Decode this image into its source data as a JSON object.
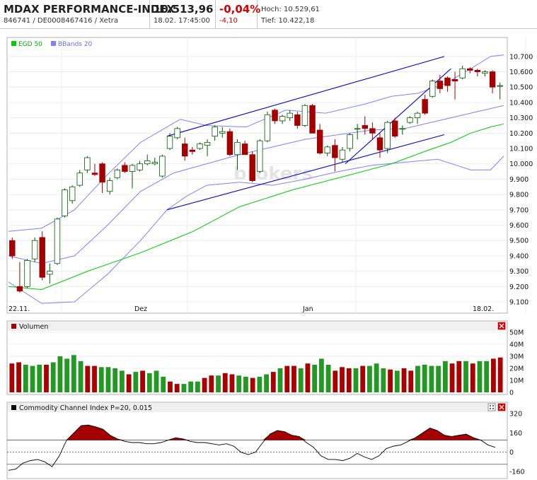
{
  "header": {
    "title": "MDAX PERFORMANCE-INDEX",
    "subtitle": "846741 / DE0008467416 / Xetra",
    "price": "10.513,96",
    "datetime": "18.02. 17:45:00",
    "change_pct": "-0,04%",
    "change_abs": "-4,10",
    "high": "Hoch: 10.529,61",
    "low": "Tief: 10.422,18"
  },
  "colors": {
    "up_fill": "#ffffff",
    "down_fill": "#a40000",
    "candle_outline": "#005a00",
    "egd": "#00cc00",
    "bbands": "#8080ff",
    "trend": "#0000cc",
    "vol_up": "#229922",
    "vol_down": "#aa0000",
    "cci_fill": "#a40000"
  },
  "icons": {
    "close": "close-x-icon",
    "layout": "layout-icon"
  },
  "chart_data": [
    {
      "type": "candlestick",
      "legend": [
        "EGD 50",
        "BBands 20"
      ],
      "x_labels": [
        "22.11.",
        "Dez",
        "Jan",
        "18.02."
      ],
      "y_ticks": [
        "10.700",
        "10.600",
        "10.500",
        "10.400",
        "10.300",
        "10.200",
        "10.100",
        "10.000",
        "9.900",
        "9.800",
        "9.700",
        "9.600",
        "9.500",
        "9.400",
        "9.300",
        "9.200",
        "9.100"
      ],
      "ylim": [
        9100,
        10750
      ],
      "watermark": "brokers",
      "ohlc": [
        [
          9500,
          9520,
          9380,
          9400
        ],
        [
          9200,
          9360,
          9160,
          9170
        ],
        [
          9200,
          9380,
          9190,
          9370
        ],
        [
          9380,
          9520,
          9360,
          9500
        ],
        [
          9520,
          9560,
          9240,
          9260
        ],
        [
          9280,
          9350,
          9220,
          9300
        ],
        [
          9350,
          9650,
          9340,
          9640
        ],
        [
          9660,
          9840,
          9650,
          9830
        ],
        [
          9760,
          9860,
          9740,
          9850
        ],
        [
          9860,
          9960,
          9850,
          9940
        ],
        [
          9960,
          10050,
          9940,
          10040
        ],
        [
          9940,
          10000,
          9920,
          9930
        ],
        [
          10000,
          10010,
          9810,
          9880
        ],
        [
          9820,
          9910,
          9800,
          9890
        ],
        [
          9910,
          9970,
          9900,
          9960
        ],
        [
          9990,
          10010,
          9940,
          9950
        ],
        [
          9950,
          10000,
          9840,
          9990
        ],
        [
          9960,
          10020,
          9950,
          10000
        ],
        [
          10000,
          10060,
          9990,
          10020
        ],
        [
          10000,
          10040,
          9990,
          10010
        ],
        [
          9920,
          10060,
          9910,
          10050
        ],
        [
          10100,
          10200,
          10090,
          10180
        ],
        [
          10170,
          10240,
          10160,
          10230
        ],
        [
          10130,
          10170,
          10020,
          10050
        ],
        [
          10090,
          10110,
          10060,
          10080
        ],
        [
          10100,
          10140,
          10090,
          10130
        ],
        [
          10120,
          10160,
          10050,
          10140
        ],
        [
          10180,
          10250,
          10150,
          10240
        ],
        [
          10200,
          10240,
          10170,
          10210
        ],
        [
          10210,
          10230,
          10050,
          10060
        ],
        [
          10060,
          10160,
          9960,
          10140
        ],
        [
          10130,
          10150,
          10060,
          10060
        ],
        [
          10060,
          10080,
          9880,
          9890
        ],
        [
          9950,
          10160,
          9940,
          10150
        ],
        [
          10150,
          10340,
          10140,
          10320
        ],
        [
          10350,
          10360,
          10260,
          10280
        ],
        [
          10280,
          10320,
          10260,
          10310
        ],
        [
          10300,
          10350,
          10280,
          10330
        ],
        [
          10320,
          10340,
          10230,
          10250
        ],
        [
          10250,
          10390,
          10240,
          10380
        ],
        [
          10380,
          10390,
          10200,
          10200
        ],
        [
          10220,
          10260,
          10060,
          10070
        ],
        [
          10070,
          10120,
          10050,
          10110
        ],
        [
          10120,
          10160,
          9950,
          10040
        ],
        [
          10030,
          10110,
          10010,
          10090
        ],
        [
          10100,
          10200,
          10080,
          10190
        ],
        [
          10230,
          10260,
          10160,
          10230
        ],
        [
          10250,
          10310,
          10190,
          10230
        ],
        [
          10230,
          10270,
          10160,
          10200
        ],
        [
          10170,
          10200,
          10040,
          10090
        ],
        [
          10100,
          10280,
          10070,
          10270
        ],
        [
          10280,
          10300,
          10170,
          10180
        ],
        [
          10230,
          10250,
          10190,
          10230
        ],
        [
          10270,
          10310,
          10260,
          10300
        ],
        [
          10300,
          10340,
          10260,
          10330
        ],
        [
          10420,
          10450,
          10320,
          10330
        ],
        [
          10440,
          10550,
          10430,
          10540
        ],
        [
          10540,
          10580,
          10460,
          10490
        ],
        [
          10560,
          10570,
          10470,
          10510
        ],
        [
          10550,
          10600,
          10420,
          10540
        ],
        [
          10560,
          10640,
          10550,
          10620
        ],
        [
          10620,
          10630,
          10590,
          10610
        ],
        [
          10610,
          10620,
          10570,
          10600
        ],
        [
          10590,
          10610,
          10570,
          10600
        ],
        [
          10600,
          10610,
          10460,
          10500
        ],
        [
          10510,
          10530,
          10420,
          10510
        ]
      ],
      "egd": [
        [
          0,
          9200
        ],
        [
          5,
          9180
        ],
        [
          12,
          9300
        ],
        [
          20,
          9420
        ],
        [
          28,
          9560
        ],
        [
          35,
          9720
        ],
        [
          43,
          9830
        ],
        [
          51,
          9920
        ],
        [
          58,
          10000
        ],
        [
          63,
          10080
        ],
        [
          67,
          10140
        ],
        [
          70,
          10200
        ],
        [
          73,
          10240
        ],
        [
          75,
          10260
        ]
      ],
      "bb_upper": [
        [
          0,
          9560
        ],
        [
          5,
          9580
        ],
        [
          10,
          9700
        ],
        [
          15,
          9930
        ],
        [
          20,
          10140
        ],
        [
          26,
          10290
        ],
        [
          30,
          10250
        ],
        [
          36,
          10240
        ],
        [
          42,
          10350
        ],
        [
          48,
          10330
        ],
        [
          54,
          10390
        ],
        [
          58,
          10440
        ],
        [
          62,
          10460
        ],
        [
          66,
          10520
        ],
        [
          70,
          10620
        ],
        [
          73,
          10700
        ],
        [
          75,
          10710
        ]
      ],
      "bb_mid": [
        [
          0,
          9400
        ],
        [
          5,
          9350
        ],
        [
          10,
          9400
        ],
        [
          15,
          9600
        ],
        [
          20,
          9820
        ],
        [
          25,
          9940
        ],
        [
          30,
          10000
        ],
        [
          35,
          10060
        ],
        [
          40,
          10110
        ],
        [
          45,
          10160
        ],
        [
          50,
          10190
        ],
        [
          55,
          10220
        ],
        [
          60,
          10230
        ],
        [
          65,
          10280
        ],
        [
          70,
          10330
        ],
        [
          75,
          10380
        ]
      ],
      "bb_lower": [
        [
          0,
          9230
        ],
        [
          5,
          9090
        ],
        [
          10,
          9100
        ],
        [
          15,
          9280
        ],
        [
          20,
          9500
        ],
        [
          24,
          9700
        ],
        [
          27,
          9790
        ],
        [
          30,
          9860
        ],
        [
          35,
          9880
        ],
        [
          40,
          9860
        ],
        [
          45,
          9900
        ],
        [
          50,
          9950
        ],
        [
          55,
          9990
        ],
        [
          60,
          10010
        ],
        [
          65,
          10030
        ],
        [
          70,
          9960
        ],
        [
          73,
          9960
        ],
        [
          75,
          10050
        ]
      ],
      "trendlines": [
        [
          [
            24,
            10180
          ],
          [
            66,
            10700
          ]
        ],
        [
          [
            24,
            9700
          ],
          [
            66,
            10190
          ]
        ],
        [
          [
            51,
            10000
          ],
          [
            67,
            10620
          ]
        ]
      ]
    },
    {
      "type": "bar",
      "title": "Volumen",
      "y_ticks": [
        "50M",
        "40M",
        "30M",
        "20M",
        "10M",
        "0"
      ],
      "ylim": [
        0,
        50
      ],
      "values": [
        24,
        25,
        23,
        22,
        23,
        23,
        25,
        30,
        28,
        31,
        26,
        22,
        22,
        21,
        21,
        20,
        18,
        15,
        17,
        18,
        16,
        18,
        13,
        9,
        7,
        7,
        9,
        9,
        12,
        14,
        14,
        16,
        15,
        14,
        13,
        12,
        13,
        15,
        17,
        20,
        22,
        22,
        20,
        24,
        23,
        28,
        23,
        18,
        21,
        20,
        20,
        22,
        22,
        24,
        20,
        19,
        18,
        20,
        18,
        22,
        23,
        22,
        22,
        26,
        24,
        26,
        26,
        24,
        26,
        26,
        28,
        29
      ],
      "updown": [
        "d",
        "d",
        "u",
        "u",
        "u",
        "d",
        "u",
        "u",
        "u",
        "u",
        "u",
        "d",
        "d",
        "u",
        "u",
        "u",
        "u",
        "d",
        "u",
        "d",
        "u",
        "u",
        "u",
        "d",
        "d",
        "u",
        "u",
        "u",
        "d",
        "d",
        "u",
        "d",
        "d",
        "u",
        "u",
        "d",
        "u",
        "u",
        "d",
        "u",
        "d",
        "d",
        "u",
        "d",
        "u",
        "u",
        "u",
        "d",
        "d",
        "d",
        "u",
        "d",
        "u",
        "u",
        "u",
        "d",
        "u",
        "d",
        "d",
        "u",
        "u",
        "u",
        "u",
        "u",
        "d",
        "d",
        "u",
        "d",
        "u",
        "u",
        "d",
        "d"
      ]
    },
    {
      "type": "area",
      "title": "Commodity Channel Index P=20, 0.015",
      "y_ticks": [
        "320",
        "160",
        "0",
        "-160"
      ],
      "ylim": [
        -160,
        320
      ],
      "ref_lines": [
        100,
        0,
        -100
      ],
      "values": [
        -150,
        -140,
        -90,
        -70,
        -60,
        -80,
        -120,
        -30,
        100,
        160,
        220,
        225,
        210,
        190,
        140,
        110,
        90,
        80,
        80,
        70,
        70,
        80,
        100,
        120,
        110,
        90,
        80,
        80,
        70,
        60,
        70,
        50,
        0,
        -20,
        0,
        80,
        150,
        180,
        170,
        140,
        130,
        80,
        40,
        -30,
        -60,
        -60,
        -70,
        -50,
        -10,
        -40,
        -60,
        -30,
        30,
        50,
        60,
        90,
        120,
        160,
        200,
        180,
        140,
        130,
        140,
        150,
        120,
        100,
        60,
        40
      ]
    }
  ]
}
